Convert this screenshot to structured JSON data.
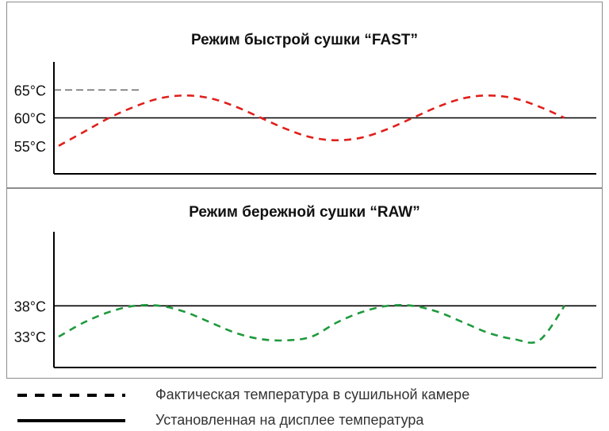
{
  "chart_data": [
    {
      "type": "line",
      "title": "Режим быстрой сушки “FAST”",
      "xlabel": "",
      "ylabel": "",
      "ylim": [
        50,
        70
      ],
      "y_ticks": [
        "65°C",
        "60°C",
        "55°C"
      ],
      "y_tick_values": [
        65,
        60,
        55
      ],
      "grid": false,
      "setpoint": 60,
      "setpoint_color": "#000000",
      "series": [
        {
          "style": "dashed",
          "color": "#e0201b",
          "x": [
            0,
            0.5,
            1,
            1.5,
            2,
            2.5,
            3,
            3.5,
            4,
            4.5,
            5,
            5.5,
            6,
            6.5,
            7,
            7.5,
            8,
            8.5,
            9,
            9.5,
            10
          ],
          "values": [
            55,
            57.5,
            60,
            62,
            63.5,
            64,
            63.5,
            62,
            60,
            58,
            56.5,
            56,
            56.5,
            58,
            60,
            62,
            63.5,
            64,
            63.5,
            62,
            60
          ]
        }
      ],
      "overshoot_marker": 65,
      "x_extent": [
        0,
        10
      ]
    },
    {
      "type": "line",
      "title": "Режим бережной сушки “RAW”",
      "xlabel": "",
      "ylabel": "",
      "ylim": [
        28,
        50
      ],
      "y_ticks": [
        "38°C",
        "33°C"
      ],
      "y_tick_values": [
        38,
        33
      ],
      "grid": false,
      "setpoint": 38,
      "setpoint_color": "#000000",
      "series": [
        {
          "style": "dashed",
          "color": "#1e9a3c",
          "x": [
            0,
            0.5,
            1,
            1.5,
            2,
            2.5,
            3,
            3.5,
            4,
            4.5,
            5,
            5.5,
            6,
            6.5,
            7,
            7.5,
            8,
            8.5,
            9,
            9.5,
            10
          ],
          "values": [
            33,
            35.3,
            37,
            38,
            38,
            37,
            35.3,
            33.6,
            32.6,
            32.4,
            33,
            35.3,
            37,
            38,
            38,
            37,
            35.3,
            33.6,
            32.6,
            32.4,
            38
          ]
        }
      ],
      "x_extent": [
        0,
        10
      ]
    }
  ],
  "legend": [
    {
      "style": "dashed",
      "color": "#000000",
      "label": "Фактическая температура в сушильной камере"
    },
    {
      "style": "solid",
      "color": "#000000",
      "label": "Установленная на дисплее температура"
    }
  ]
}
